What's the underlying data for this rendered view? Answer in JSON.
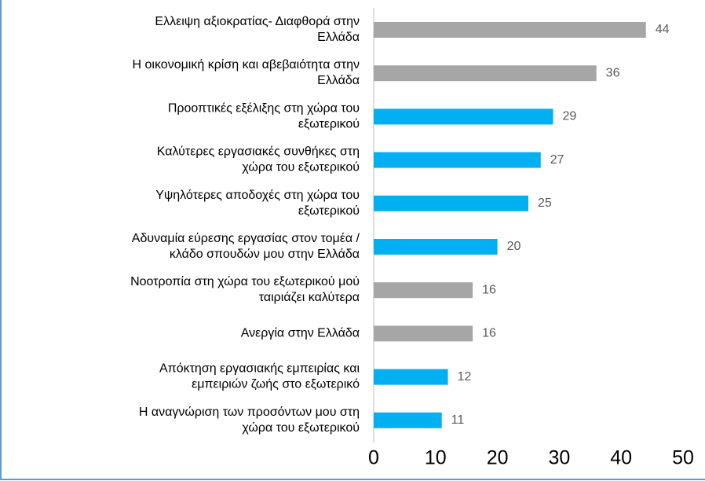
{
  "chart_data": {
    "type": "bar",
    "orientation": "horizontal",
    "categories": [
      "Ελλειψη αξιοκρατίας- Διαφθορά στην\nΕλλάδα",
      "Η οικονομική κρίση και αβεβαιότητα στην\nΕλλάδα",
      "Προοπτικές εξέλιξης στη χώρα του\nεξωτερικού",
      "Καλύτερες εργασιακές συνθήκες στη\nχώρα του εξωτερικού",
      "Υψηλότερες αποδοχές στη χώρα του\nεξωτερικού",
      "Αδυναμία εύρεσης εργασίας στον τομέα /\nκλάδο σπουδών μου στην Ελλάδα",
      "Νοοτροπία στη χώρα του εξωτερικού μού\nταιριάζει καλύτερα",
      "Ανεργία στην Ελλάδα",
      "Απόκτηση εργασιακής εμπειρίας και\nεμπειριών ζωής στο εξωτερικό",
      "Η αναγνώριση των προσόντων μου στη\nχώρα του εξωτερικού"
    ],
    "values": [
      44,
      36,
      29,
      27,
      25,
      20,
      16,
      16,
      12,
      11
    ],
    "colors": [
      "#a6a6a6",
      "#a6a6a6",
      "#00b0f0",
      "#00b0f0",
      "#00b0f0",
      "#00b0f0",
      "#a6a6a6",
      "#a6a6a6",
      "#00b0f0",
      "#00b0f0"
    ],
    "xlim": [
      0,
      50
    ],
    "xticks": [
      0,
      10,
      20,
      30,
      40,
      50
    ]
  }
}
